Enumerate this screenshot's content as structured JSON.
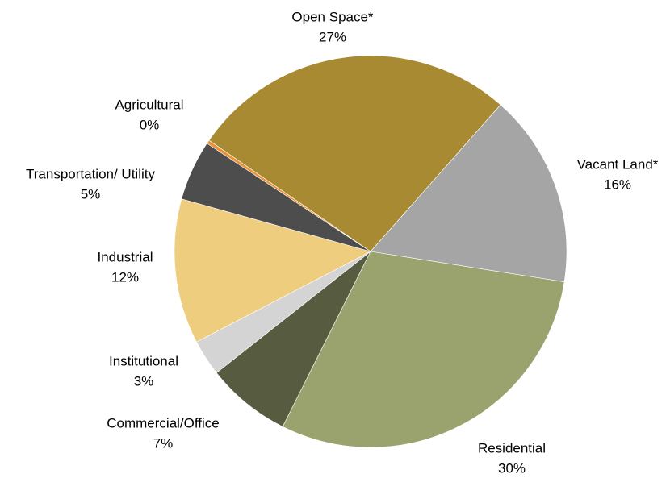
{
  "chart_data": {
    "type": "pie",
    "categories": [
      "Vacant Land*",
      "Residential",
      "Commercial/Office",
      "Institutional",
      "Industrial",
      "Transportation/ Utility",
      "Agricultural",
      "Open Space*"
    ],
    "values": [
      16,
      30,
      7,
      3,
      12,
      5,
      0.3,
      27
    ],
    "value_labels": [
      "16%",
      "30%",
      "7%",
      "3%",
      "12%",
      "5%",
      "0%",
      "27%"
    ],
    "colors": [
      "#a5a5a5",
      "#9aa36d",
      "#575c40",
      "#d4d4d4",
      "#efcd7f",
      "#4d4d4d",
      "#e8923a",
      "#a88a32"
    ]
  }
}
